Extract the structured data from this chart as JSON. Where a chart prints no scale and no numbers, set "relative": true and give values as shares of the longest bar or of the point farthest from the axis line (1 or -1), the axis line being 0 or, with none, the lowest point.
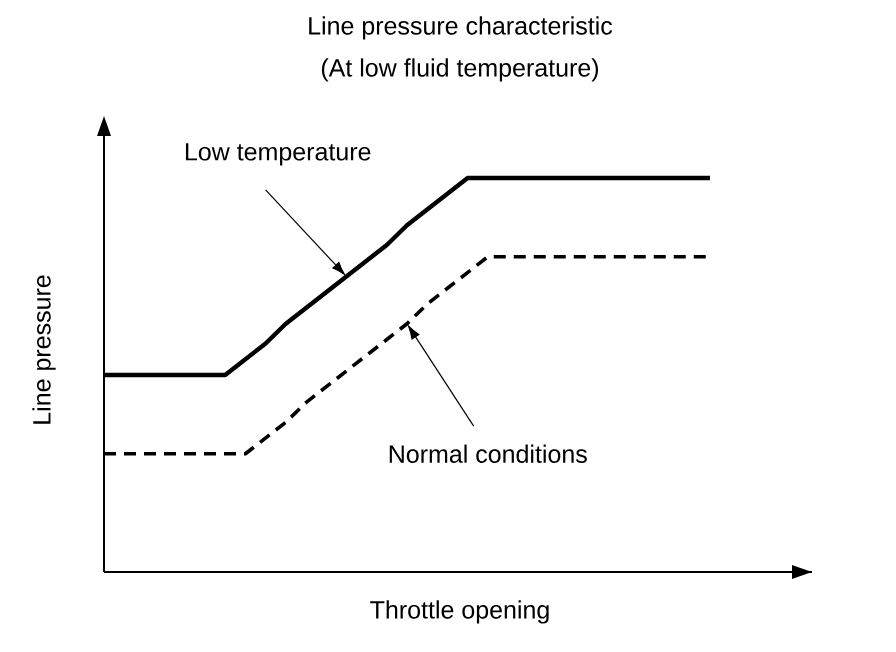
{
  "chart_data": {
    "type": "line",
    "title": "Line pressure characteristic",
    "subtitle": "(At low fluid temperature)",
    "xlabel": "Throttle opening",
    "ylabel": "Line pressure",
    "relative": true,
    "categories": [
      null,
      null,
      null,
      null,
      null,
      null,
      null,
      null,
      null,
      null,
      null,
      null,
      null,
      null,
      null,
      null,
      null,
      null,
      null,
      null,
      null,
      null,
      null,
      null,
      null,
      null,
      null,
      null,
      null,
      null,
      null
    ],
    "series": [
      {
        "color": "#000000",
        "line_style": "solid",
        "values": [
          0.5,
          0.5,
          0.5,
          0.5,
          0.5,
          0.5,
          0.5,
          0.54,
          0.58,
          0.63,
          0.67,
          0.71,
          0.75,
          0.79,
          0.83,
          0.88,
          0.92,
          0.96,
          1,
          1,
          1,
          1,
          1,
          1,
          1,
          1,
          1,
          1,
          1,
          1,
          1
        ]
      },
      {
        "color": "#000000",
        "line_style": "dashed",
        "values": [
          0.3,
          0.3,
          0.3,
          0.3,
          0.3,
          0.3,
          0.3,
          0.3,
          0.34,
          0.38,
          0.43,
          0.47,
          0.51,
          0.55,
          0.59,
          0.63,
          0.68,
          0.72,
          0.76,
          0.8,
          0.8,
          0.8,
          0.8,
          0.8,
          0.8,
          0.8,
          0.8,
          0.8,
          0.8,
          0.8,
          0.8
        ]
      }
    ],
    "annotations": [
      "Low temperature",
      "Normal conditions"
    ]
  }
}
